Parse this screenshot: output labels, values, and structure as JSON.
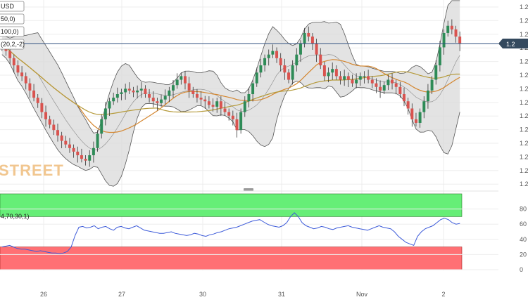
{
  "chart_data": [
    {
      "type": "candlestick",
      "title": "",
      "legend_fragments": [
        "USD",
        "50,0)",
        "100,0)",
        "(20,2,-2)"
      ],
      "price_badge": "1.2",
      "y_tick_labels": [
        "1.2",
        "1.2",
        "1.2",
        "1.2",
        "1.2",
        "1.2",
        "1.2",
        "1.2",
        "1.2",
        "1.2",
        "1.2",
        "1.2",
        "1.2",
        "1.2"
      ],
      "x_tick_labels": [
        "26",
        "27",
        "30",
        "31",
        "Nov",
        "2"
      ],
      "watermark": "STREET",
      "horizontal_line": "current price",
      "overlays": [
        "Bollinger Bands (20,2,-2)",
        "SMA 50",
        "SMA 100"
      ],
      "colors": {
        "up": "#2e8b57",
        "down": "#d9534f",
        "bands_fill": "#d9d9d9",
        "bands_line": "#555555",
        "sma50": "#d4862f",
        "sma100": "#b59a3a",
        "price_line": "#2f4f7f",
        "badge": "#34495e"
      },
      "close_normalized": [
        0.78,
        0.74,
        0.7,
        0.66,
        0.62,
        0.6,
        0.56,
        0.52,
        0.48,
        0.45,
        0.4,
        0.36,
        0.33,
        0.3,
        0.27,
        0.24,
        0.22,
        0.2,
        0.18,
        0.16,
        0.14,
        0.13,
        0.16,
        0.2,
        0.28,
        0.36,
        0.42,
        0.46,
        0.48,
        0.5,
        0.51,
        0.53,
        0.52,
        0.51,
        0.52,
        0.53,
        0.5,
        0.48,
        0.46,
        0.45,
        0.47,
        0.49,
        0.52,
        0.55,
        0.58,
        0.6,
        0.56,
        0.52,
        0.5,
        0.48,
        0.47,
        0.46,
        0.44,
        0.43,
        0.46,
        0.42,
        0.4,
        0.38,
        0.36,
        0.3,
        0.4,
        0.46,
        0.5,
        0.56,
        0.62,
        0.66,
        0.7,
        0.72,
        0.74,
        0.7,
        0.66,
        0.62,
        0.58,
        0.66,
        0.72,
        0.78,
        0.84,
        0.82,
        0.78,
        0.72,
        0.66,
        0.6,
        0.62,
        0.64,
        0.6,
        0.58,
        0.6,
        0.58,
        0.56,
        0.58,
        0.6,
        0.6,
        0.58,
        0.56,
        0.54,
        0.52,
        0.55,
        0.58,
        0.56,
        0.54,
        0.5,
        0.46,
        0.42,
        0.36,
        0.34,
        0.4,
        0.46,
        0.52,
        0.58,
        0.66,
        0.76,
        0.84,
        0.88,
        0.86,
        0.82,
        0.78
      ]
    },
    {
      "type": "line",
      "name": "RSI",
      "label_fragment": "4,70,30,1)",
      "y_tick_labels": [
        "80",
        "60",
        "40",
        "20",
        "0"
      ],
      "ylim": [
        0,
        100
      ],
      "overbought": 70,
      "oversold": 30,
      "colors": {
        "line": "#3d5bd9",
        "overbought_fill": "#66ee77",
        "oversold_fill": "#ff7074"
      },
      "values": [
        30,
        31,
        32,
        30,
        28,
        27,
        27,
        26,
        25,
        24,
        25,
        24,
        23,
        22,
        22,
        21,
        22,
        24,
        30,
        45,
        56,
        57,
        55,
        56,
        58,
        54,
        56,
        57,
        54,
        52,
        56,
        57,
        55,
        54,
        56,
        58,
        55,
        52,
        51,
        50,
        49,
        48,
        48,
        49,
        50,
        48,
        47,
        46,
        45,
        46,
        48,
        47,
        45,
        44,
        46,
        47,
        49,
        50,
        52,
        54,
        55,
        56,
        58,
        60,
        62,
        64,
        65,
        66,
        63,
        60,
        58,
        57,
        56,
        58,
        62,
        70,
        75,
        70,
        62,
        58,
        56,
        54,
        55,
        57,
        56,
        54,
        53,
        55,
        56,
        57,
        58,
        56,
        55,
        54,
        53,
        52,
        54,
        56,
        58,
        56,
        55,
        54,
        50,
        44,
        40,
        36,
        34,
        32,
        44,
        50,
        54,
        56,
        58,
        62,
        66,
        68,
        66,
        62,
        60,
        61
      ]
    }
  ]
}
